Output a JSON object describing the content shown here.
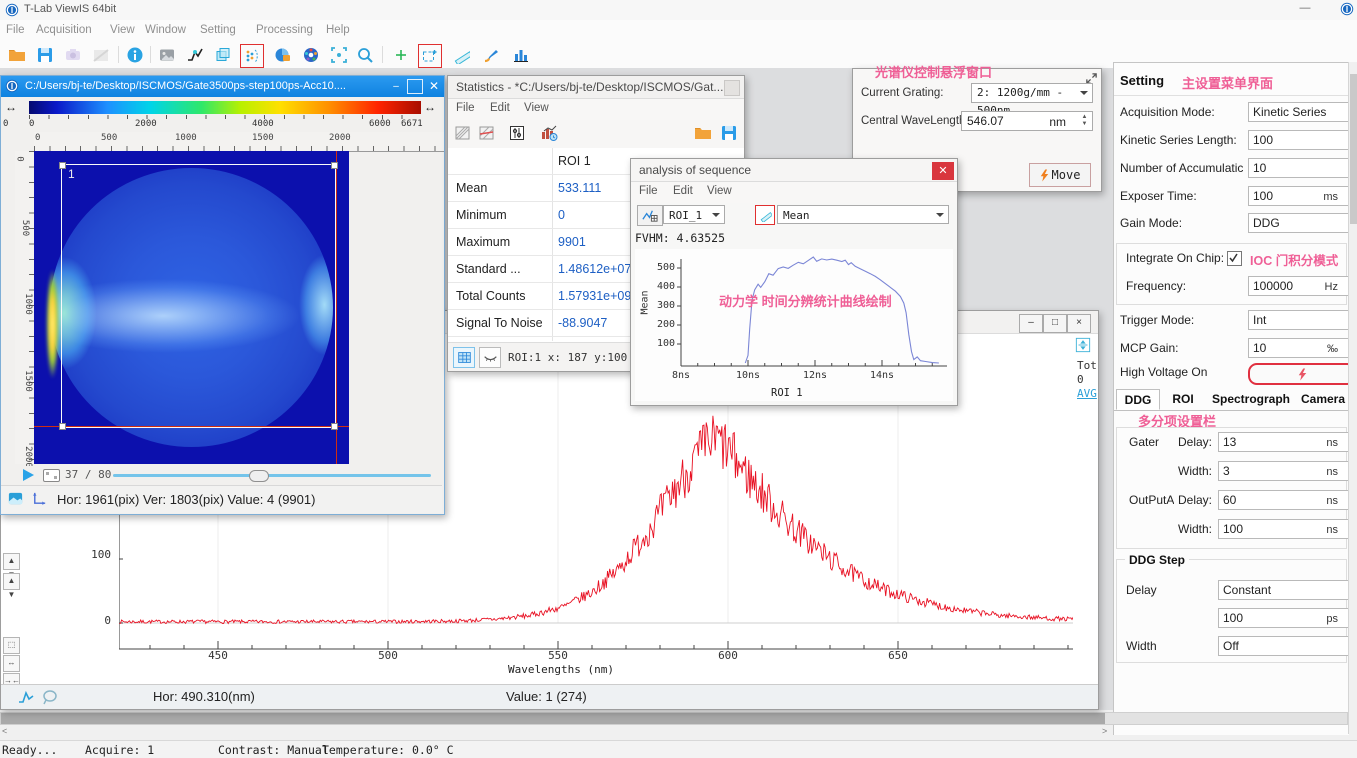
{
  "colors": {
    "titlebar_blue": "#1287e8",
    "annotation_pink": "#ef5f96",
    "stat_value_blue": "#1d5fc4",
    "spectrum_red": "#e81123",
    "analysis_curve_blue": "#7b86d6",
    "highlight_red_border": "#e03030"
  },
  "app": {
    "title": "T-Lab ViewIS 64bit",
    "menu": [
      "File",
      "Acquisition",
      "View",
      "Window",
      "Setting",
      "Processing",
      "Help"
    ],
    "toolbar_icons": [
      "open-folder",
      "save",
      "camera",
      "camera-disabled",
      "info",
      "image",
      "curve",
      "cube-3d",
      "gate-dots",
      "acquire-lock",
      "color-wheel",
      "auto-focus",
      "zoom",
      "add-point",
      "roi-rectangle",
      "ruler",
      "paint-brush",
      "histogram"
    ]
  },
  "viewer": {
    "title": "C:/Users/bj-te/Desktop/ISCMOS/Gate3500ps-step100ps-Acc10....",
    "colorbar_ticks": [
      "0",
      "2000",
      "4000",
      "6000"
    ],
    "colorbar_max": "6671",
    "h_ruler": [
      "0",
      "500",
      "1000",
      "1500",
      "2000"
    ],
    "v_ruler": [
      "0",
      "500",
      "1000",
      "1500",
      "2000"
    ],
    "roi_label": "1",
    "frame_counter": "37 / 80",
    "status": "Hor: 1961(pix) Ver: 1803(pix) Value: 4 (9901)"
  },
  "statistics": {
    "title": "Statistics - *C:/Users/bj-te/Desktop/ISCMOS/Gat...",
    "menu": [
      "File",
      "Edit",
      "View"
    ],
    "column_header": "ROI 1",
    "rows": [
      {
        "label": "Mean",
        "value": "533.111"
      },
      {
        "label": "Minimum",
        "value": "0"
      },
      {
        "label": "Maximum",
        "value": "9901"
      },
      {
        "label": "Standard ...",
        "value": "1.48612e+07"
      },
      {
        "label": "Total Counts",
        "value": "1.57931e+09"
      },
      {
        "label": "Signal To Noise",
        "value": "-88.9047"
      }
    ],
    "status": "ROI:1  x: 187 y:100 v"
  },
  "analysis": {
    "title": "analysis of sequence",
    "menu": [
      "File",
      "Edit",
      "View"
    ],
    "roi_dropdown": "ROI_1",
    "metric_dropdown": "Mean",
    "fwhm": "FVHM: 4.63525",
    "annotation": "动力学 时间分辨统计曲线绘制"
  },
  "grating_panel": {
    "annotation": "光谱仪控制悬浮窗口",
    "grating_label": "Current Grating:",
    "grating_value": "2: 1200g/mm - 500nm",
    "wavelength_label": "Central WaveLength:",
    "wavelength_value": "546.07",
    "wavelength_unit": "nm",
    "move_label": "Move"
  },
  "spectrum_window": {
    "side_top": "Tot",
    "side_mid": "0",
    "side_bottom": "AVG",
    "status_hor": "Hor: 490.310(nm)",
    "status_value": "Value: 1 (274)"
  },
  "settings_panel": {
    "title": "Setting",
    "annotation": "主设置菜单界面",
    "acquisition_mode_label": "Acquisition Mode:",
    "acquisition_mode": "Kinetic Series",
    "kinetic_length_label": "Kinetic Series Length:",
    "kinetic_length": "100",
    "accumulation_label": "Number of Accumulatic",
    "accumulation": "10",
    "exposure_label": "Exposer Time:",
    "exposure": "100",
    "exposure_unit": "ms",
    "gain_mode_label": "Gain Mode:",
    "gain_mode": "DDG",
    "ioc_label": "Integrate On Chip:",
    "ioc_annotation": "IOC 门积分模式",
    "frequency_label": "Frequency:",
    "frequency": "100000",
    "frequency_unit": "Hz",
    "trigger_label": "Trigger Mode:",
    "trigger": "Int",
    "mcp_label": "MCP Gain:",
    "mcp": "10",
    "mcp_unit": "‰",
    "hv_label": "High Voltage On",
    "tabs": [
      "DDG",
      "ROI",
      "Spectrograph",
      "Camera"
    ],
    "tabs_annotation": "多分项设置栏",
    "gater_label": "Gater",
    "delay_label": "Delay:",
    "gater_delay": "13",
    "width_label": "Width:",
    "gater_width": "3",
    "outputa_label": "OutPutA",
    "outputa_delay": "60",
    "outputa_width": "100",
    "ns_unit": "ns",
    "ddg_step_title": "DDG Step",
    "step_delay_label": "Delay",
    "step_delay_mode": "Constant",
    "step_delay_value": "100",
    "step_delay_unit": "ps",
    "step_width_label": "Width",
    "step_width_mode": "Off"
  },
  "scroll_hints": {
    "left": "<",
    "right": ">"
  },
  "statusbar": {
    "ready": "Ready...",
    "acquire": "Acquire: 1",
    "contrast": "Contrast: Manual",
    "temperature": "Temperature: 0.0° C"
  },
  "chart_data": [
    {
      "name": "kinetic-roi-mean-vs-delay",
      "type": "line",
      "xlabel": "ROI 1",
      "ylabel": "Mean",
      "x_ticks": [
        "8ns",
        "10ns",
        "12ns",
        "14ns"
      ],
      "x_tick_values": [
        8,
        10,
        12,
        14
      ],
      "y_ticks": [
        100,
        200,
        300,
        400,
        500
      ],
      "xlim": [
        7.6,
        15.9
      ],
      "ylim": [
        0,
        590
      ],
      "fwhm_value": 4.63525,
      "line_color": "#7b86d6",
      "points": [
        [
          9.92,
          0
        ],
        [
          10.0,
          40
        ],
        [
          10.05,
          180
        ],
        [
          10.12,
          330
        ],
        [
          10.2,
          385
        ],
        [
          10.3,
          415
        ],
        [
          10.38,
          398
        ],
        [
          10.5,
          428
        ],
        [
          10.62,
          470
        ],
        [
          10.75,
          462
        ],
        [
          10.9,
          497
        ],
        [
          11.05,
          505
        ],
        [
          11.2,
          498
        ],
        [
          11.35,
          515
        ],
        [
          11.5,
          530
        ],
        [
          11.65,
          522
        ],
        [
          11.8,
          540
        ],
        [
          11.95,
          558
        ],
        [
          12.05,
          535
        ],
        [
          12.2,
          548
        ],
        [
          12.35,
          542
        ],
        [
          12.5,
          547
        ],
        [
          12.65,
          541
        ],
        [
          12.8,
          534
        ],
        [
          12.9,
          541
        ],
        [
          13.0,
          518
        ],
        [
          13.08,
          528
        ],
        [
          13.2,
          509
        ],
        [
          13.35,
          496
        ],
        [
          13.5,
          483
        ],
        [
          13.65,
          470
        ],
        [
          13.8,
          456
        ],
        [
          13.95,
          438
        ],
        [
          14.1,
          418
        ],
        [
          14.25,
          398
        ],
        [
          14.4,
          378
        ],
        [
          14.55,
          350
        ],
        [
          14.65,
          315
        ],
        [
          14.72,
          265
        ],
        [
          14.8,
          150
        ],
        [
          14.88,
          60
        ],
        [
          14.95,
          18
        ],
        [
          15.05,
          32
        ],
        [
          15.15,
          12
        ],
        [
          15.3,
          8
        ],
        [
          15.5,
          2
        ],
        [
          15.7,
          0
        ]
      ]
    },
    {
      "name": "spectrum",
      "type": "line",
      "xlabel": "Wavelengths (nm)",
      "x_ticks": [
        "450",
        "500",
        "550",
        "600",
        "650"
      ],
      "x_tick_values": [
        450,
        500,
        550,
        600,
        650
      ],
      "y_ticks": [
        0,
        100
      ],
      "xlim": [
        421,
        707
      ],
      "ylim": [
        -45,
        310
      ],
      "peak_nm": 595,
      "peak_value": 285,
      "line_color": "#e81123",
      "envelope": [
        [
          421,
          2
        ],
        [
          500,
          2
        ],
        [
          520,
          3
        ],
        [
          532,
          6
        ],
        [
          542,
          12
        ],
        [
          552,
          26
        ],
        [
          560,
          48
        ],
        [
          568,
          85
        ],
        [
          576,
          140
        ],
        [
          583,
          196
        ],
        [
          589,
          245
        ],
        [
          594,
          280
        ],
        [
          597,
          285
        ],
        [
          600,
          270
        ],
        [
          604,
          242
        ],
        [
          609,
          210
        ],
        [
          615,
          172
        ],
        [
          622,
          135
        ],
        [
          630,
          100
        ],
        [
          638,
          72
        ],
        [
          646,
          52
        ],
        [
          654,
          38
        ],
        [
          662,
          27
        ],
        [
          670,
          19
        ],
        [
          680,
          12
        ],
        [
          695,
          7
        ],
        [
          707,
          5
        ]
      ],
      "noise_seed": 7,
      "noise_base": 2.5,
      "noise_scale": 0.15
    }
  ]
}
